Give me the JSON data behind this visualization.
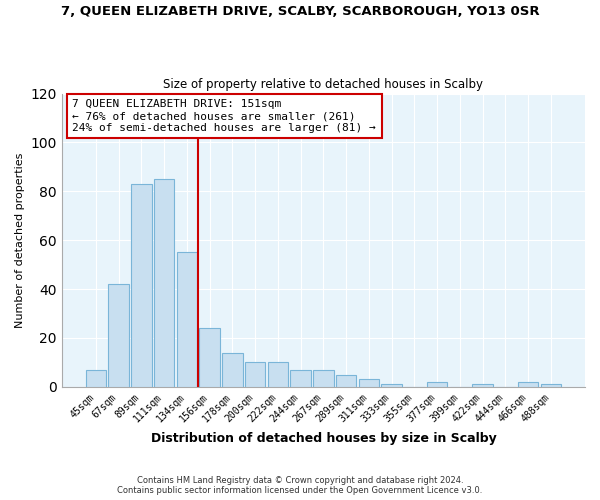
{
  "title_line1": "7, QUEEN ELIZABETH DRIVE, SCALBY, SCARBOROUGH, YO13 0SR",
  "title_line2": "Size of property relative to detached houses in Scalby",
  "xlabel": "Distribution of detached houses by size in Scalby",
  "ylabel": "Number of detached properties",
  "bar_labels": [
    "45sqm",
    "67sqm",
    "89sqm",
    "111sqm",
    "134sqm",
    "156sqm",
    "178sqm",
    "200sqm",
    "222sqm",
    "244sqm",
    "267sqm",
    "289sqm",
    "311sqm",
    "333sqm",
    "355sqm",
    "377sqm",
    "399sqm",
    "422sqm",
    "444sqm",
    "466sqm",
    "488sqm"
  ],
  "bar_heights": [
    7,
    42,
    83,
    85,
    55,
    24,
    14,
    10,
    10,
    7,
    7,
    5,
    3,
    1,
    0,
    2,
    0,
    1,
    0,
    2,
    1
  ],
  "bar_color": "#c8dff0",
  "bar_edge_color": "#7ab5d8",
  "vline_x": 4.5,
  "vline_color": "#cc0000",
  "ylim": [
    0,
    120
  ],
  "yticks": [
    0,
    20,
    40,
    60,
    80,
    100,
    120
  ],
  "annotation_title": "7 QUEEN ELIZABETH DRIVE: 151sqm",
  "annotation_line2": "← 76% of detached houses are smaller (261)",
  "annotation_line3": "24% of semi-detached houses are larger (81) →",
  "annotation_box_color": "#ffffff",
  "annotation_box_edge": "#cc0000",
  "footer_line1": "Contains HM Land Registry data © Crown copyright and database right 2024.",
  "footer_line2": "Contains public sector information licensed under the Open Government Licence v3.0.",
  "bg_color": "#e8f4fb"
}
